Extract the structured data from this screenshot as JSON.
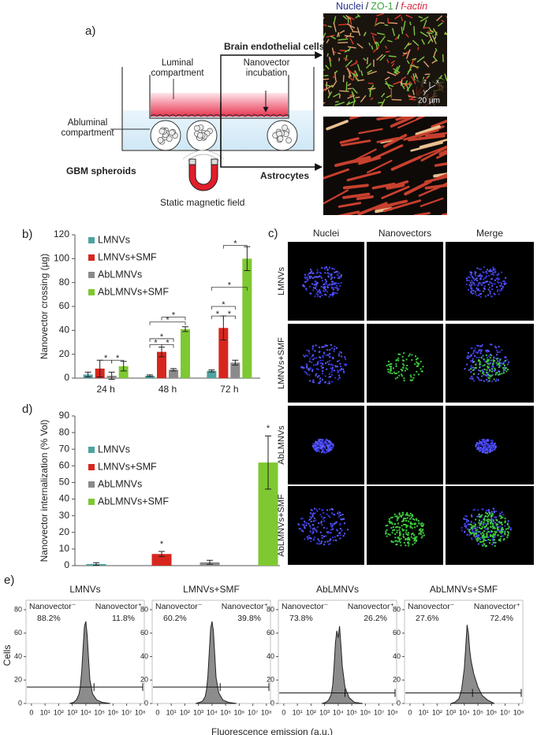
{
  "figure": {
    "panel_labels": [
      "a)",
      "b)",
      "c)",
      "d)",
      "e)"
    ]
  },
  "diagram": {
    "stain_labels": [
      "Nuclei",
      "ZO-1",
      "f-actin"
    ],
    "separator": "/",
    "luminal": "Luminal compartment",
    "incubation": "Nanovector incubation",
    "abluminal": "Abluminal compartment",
    "spheroids": "GBM spheroids",
    "magnet": "Static magnetic field",
    "endothelial": "Brain endothelial cells",
    "astrocytes": "Astrocytes",
    "scale": "20 µm",
    "axes": [
      "z",
      "y",
      "x"
    ]
  },
  "microscopy": {
    "columns": [
      "Nuclei",
      "Nanovectors",
      "Merge"
    ],
    "rows": [
      "LMNVs",
      "LMNVs+SMF",
      "AbLMNVs",
      "AbLMNVs+SMF"
    ]
  },
  "chart_data": [
    {
      "type": "bar",
      "y_label": "Nanovector crossing (µg)",
      "categories": [
        "24 h",
        "48 h",
        "72 h"
      ],
      "series": [
        {
          "name": "LMNVs",
          "color": "#4fa3a0",
          "values": [
            3,
            2,
            6
          ],
          "errors": [
            2,
            0.7,
            0.8
          ]
        },
        {
          "name": "LMNVs+SMF",
          "color": "#d7261e",
          "values": [
            8,
            22,
            42
          ],
          "errors": [
            7,
            4,
            10
          ]
        },
        {
          "name": "AbLMNVs",
          "color": "#8a8a8a",
          "values": [
            2,
            7,
            13
          ],
          "errors": [
            3,
            1,
            2
          ]
        },
        {
          "name": "AbLMNVs+SMF",
          "color": "#7ec832",
          "values": [
            10,
            41,
            100
          ],
          "errors": [
            4,
            2,
            10
          ]
        }
      ],
      "ylim": [
        0,
        120
      ],
      "yticks": [
        0,
        20,
        40,
        60,
        80,
        100,
        120
      ],
      "annotation": "*"
    },
    {
      "type": "bar",
      "y_label": "Nanovector internalization (% Vol)",
      "categories": [
        null
      ],
      "series": [
        {
          "name": "LMNVs",
          "color": "#4fa3a0",
          "values": [
            1
          ],
          "errors": [
            0.8
          ]
        },
        {
          "name": "LMNVs+SMF",
          "color": "#d7261e",
          "values": [
            7
          ],
          "errors": [
            1.5
          ]
        },
        {
          "name": "AbLMNVs",
          "color": "#8a8a8a",
          "values": [
            2
          ],
          "errors": [
            1.2
          ]
        },
        {
          "name": "AbLMNVs+SMF",
          "color": "#7ec832",
          "values": [
            62
          ],
          "errors": [
            16
          ]
        }
      ],
      "ylim": [
        0,
        90
      ],
      "yticks": [
        0,
        10,
        20,
        30,
        40,
        50,
        60,
        70,
        80,
        90
      ],
      "annotation": "*"
    },
    {
      "type": "area",
      "title": "LMNVs",
      "x_label": "Fluorescence emission (a.u.)",
      "y_label": "Cells",
      "color": "#8c8c8c",
      "x": [
        2.8,
        3.1,
        3.3,
        3.5,
        3.6,
        3.7,
        3.8,
        3.9,
        4.0,
        4.1,
        4.2,
        4.3,
        4.5,
        4.8,
        5.2,
        5.8
      ],
      "values": [
        0,
        1,
        3,
        8,
        15,
        28,
        48,
        66,
        70,
        58,
        38,
        20,
        8,
        3,
        1,
        0
      ],
      "xlim": [
        -0.4,
        8.3
      ],
      "xticks": [
        0,
        {
          "value": 1,
          "label": "10¹"
        },
        {
          "value": 2,
          "label": "10²"
        },
        {
          "value": 3,
          "label": "10³"
        },
        {
          "value": 4,
          "label": "10⁴"
        },
        {
          "value": 5,
          "label": "10⁵"
        },
        {
          "value": 6,
          "label": "10⁶"
        },
        {
          "value": 7,
          "label": "10⁷"
        },
        {
          "value": 8,
          "label": "10⁸"
        }
      ],
      "ylim": [
        0,
        88
      ],
      "yticks": [
        0,
        20,
        40,
        60,
        80
      ],
      "gate": {
        "y": 14,
        "split": 4.6
      },
      "gate_labels": [
        "Nanovector⁻",
        "Nanovector⁺"
      ],
      "gate_percentages": [
        "88.2%",
        "11.8%"
      ]
    },
    {
      "type": "area",
      "title": "LMNVs+SMF",
      "color": "#8c8c8c",
      "x": [
        2.8,
        3.1,
        3.3,
        3.5,
        3.6,
        3.7,
        3.8,
        3.9,
        4.0,
        4.1,
        4.2,
        4.3,
        4.5,
        4.8,
        5.2,
        5.8
      ],
      "values": [
        0,
        1,
        2,
        6,
        12,
        24,
        44,
        64,
        70,
        62,
        42,
        22,
        9,
        3,
        1,
        0
      ],
      "xlim": [
        -0.4,
        8.3
      ],
      "xticks": [
        0,
        {
          "value": 1,
          "label": "10¹"
        },
        {
          "value": 2,
          "label": "10²"
        },
        {
          "value": 3,
          "label": "10³"
        },
        {
          "value": 4,
          "label": "10⁴"
        },
        {
          "value": 5,
          "label": "10⁵"
        },
        {
          "value": 6,
          "label": "10⁶"
        },
        {
          "value": 7,
          "label": "10⁷"
        },
        {
          "value": 8,
          "label": "10⁸"
        }
      ],
      "ylim": [
        0,
        88
      ],
      "yticks": [
        0,
        20,
        40,
        60,
        80
      ],
      "gate": {
        "y": 14,
        "split": 4.6
      },
      "gate_labels": [
        "Nanovector⁻",
        "Nanovector⁺"
      ],
      "gate_percentages": [
        "60.2%",
        "39.8%"
      ]
    },
    {
      "type": "area",
      "title": "AbLMNVs",
      "color": "#8c8c8c",
      "x": [
        2.8,
        3.1,
        3.3,
        3.5,
        3.6,
        3.7,
        3.8,
        3.9,
        4.0,
        4.1,
        4.2,
        4.3,
        4.5,
        4.8,
        5.2,
        5.8
      ],
      "values": [
        0,
        1,
        3,
        8,
        16,
        32,
        52,
        62,
        56,
        66,
        50,
        32,
        14,
        5,
        1,
        0
      ],
      "xlim": [
        -0.4,
        8.3
      ],
      "xticks": [
        0,
        {
          "value": 1,
          "label": "10¹"
        },
        {
          "value": 2,
          "label": "10²"
        },
        {
          "value": 3,
          "label": "10³"
        },
        {
          "value": 4,
          "label": "10⁴"
        },
        {
          "value": 5,
          "label": "10⁵"
        },
        {
          "value": 6,
          "label": "10⁶"
        },
        {
          "value": 7,
          "label": "10⁷"
        },
        {
          "value": 8,
          "label": "10⁸"
        }
      ],
      "ylim": [
        0,
        88
      ],
      "yticks": [
        0,
        20,
        40,
        60,
        80
      ],
      "gate": {
        "y": 9,
        "split": 4.5
      },
      "gate_labels": [
        "Nanovector⁻",
        "Nanovector⁺"
      ],
      "gate_percentages": [
        "73.8%",
        "26.2%"
      ]
    },
    {
      "type": "area",
      "title": "AbLMNVs+SMF",
      "color": "#8c8c8c",
      "x": [
        3.0,
        3.3,
        3.6,
        3.8,
        4.0,
        4.1,
        4.2,
        4.3,
        4.4,
        4.5,
        4.7,
        5.0,
        5.3,
        5.7,
        6.2
      ],
      "values": [
        0,
        1,
        4,
        12,
        30,
        48,
        67,
        60,
        45,
        36,
        25,
        14,
        7,
        3,
        0
      ],
      "xlim": [
        -0.4,
        8.3
      ],
      "xticks": [
        0,
        {
          "value": 1,
          "label": "10¹"
        },
        {
          "value": 2,
          "label": "10²"
        },
        {
          "value": 3,
          "label": "10³"
        },
        {
          "value": 4,
          "label": "10⁴"
        },
        {
          "value": 5,
          "label": "10⁵"
        },
        {
          "value": 6,
          "label": "10⁶"
        },
        {
          "value": 7,
          "label": "10⁷"
        },
        {
          "value": 8,
          "label": "10⁸"
        }
      ],
      "ylim": [
        0,
        88
      ],
      "yticks": [
        0,
        20,
        40,
        60,
        80
      ],
      "gate": {
        "y": 9,
        "split": 4.6
      },
      "gate_labels": [
        "Nanovector⁻",
        "Nanovector⁺"
      ],
      "gate_percentages": [
        "27.6%",
        "72.4%"
      ]
    }
  ]
}
